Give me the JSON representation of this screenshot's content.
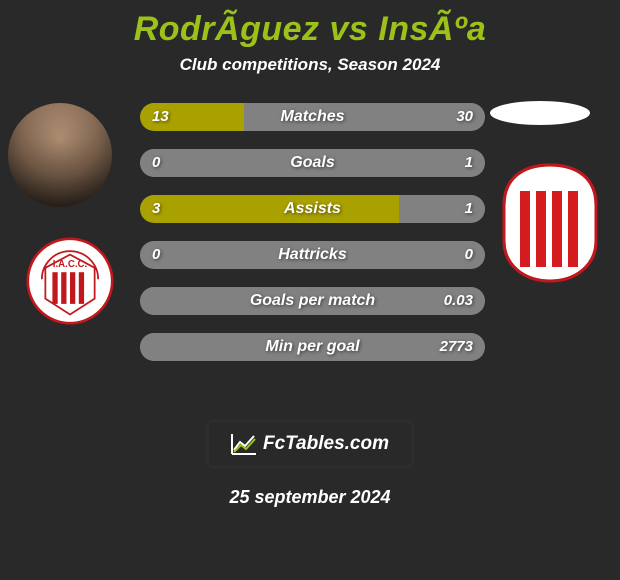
{
  "title": {
    "text": "RodrÃ­guez vs InsÃºa",
    "color": "#9cc219",
    "fontsize": 34
  },
  "subtitle": "Club competitions, Season 2024",
  "colors": {
    "left": "#a9a100",
    "right": "#818181",
    "neutral": "#818181",
    "textshadow": "rgba(0,0,0,0.55)"
  },
  "rows": [
    {
      "label": "Matches",
      "left": "13",
      "right": "30",
      "left_pct": 30,
      "left_color": "#a9a100",
      "right_color": "#818181"
    },
    {
      "label": "Goals",
      "left": "0",
      "right": "1",
      "left_pct": 0,
      "left_color": "#a9a100",
      "right_color": "#818181"
    },
    {
      "label": "Assists",
      "left": "3",
      "right": "1",
      "left_pct": 75,
      "left_color": "#a9a100",
      "right_color": "#818181"
    },
    {
      "label": "Hattricks",
      "left": "0",
      "right": "0",
      "left_pct": 50,
      "left_color": "#818181",
      "right_color": "#818181"
    },
    {
      "label": "Goals per match",
      "left": "",
      "right": "0.03",
      "left_pct": 0,
      "left_color": "#a9a100",
      "right_color": "#818181"
    },
    {
      "label": "Min per goal",
      "left": "",
      "right": "2773",
      "left_pct": 0,
      "left_color": "#a9a100",
      "right_color": "#818181"
    }
  ],
  "badge": {
    "text": "FcTables.com"
  },
  "date": "25 september 2024",
  "crest_left_text": "I.A.C.C.",
  "crest_stripe_color": "#d41b1f"
}
